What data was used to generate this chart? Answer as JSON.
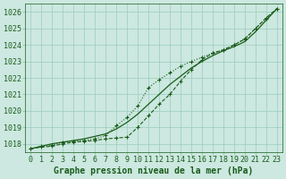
{
  "background_color": "#cce8e0",
  "grid_color": "#99ccbb",
  "line_color": "#1a5c1a",
  "title": "Graphe pression niveau de la mer (hPa)",
  "title_color": "#1a5c1a",
  "xlim": [
    -0.5,
    23.5
  ],
  "ylim": [
    1017.5,
    1026.5
  ],
  "yticks": [
    1018,
    1019,
    1020,
    1021,
    1022,
    1023,
    1024,
    1025,
    1026
  ],
  "xticks": [
    0,
    1,
    2,
    3,
    4,
    5,
    6,
    7,
    8,
    9,
    10,
    11,
    12,
    13,
    14,
    15,
    16,
    17,
    18,
    19,
    20,
    21,
    22,
    23
  ],
  "line_smooth_x": [
    0,
    1,
    2,
    3,
    4,
    5,
    6,
    7,
    8,
    9,
    10,
    11,
    12,
    13,
    14,
    15,
    16,
    17,
    18,
    19,
    20,
    21,
    22,
    23
  ],
  "line_smooth_y": [
    1017.7,
    1017.85,
    1018.0,
    1018.1,
    1018.2,
    1018.3,
    1018.45,
    1018.6,
    1018.9,
    1019.3,
    1019.8,
    1020.4,
    1021.0,
    1021.6,
    1022.1,
    1022.6,
    1023.0,
    1023.35,
    1023.65,
    1023.9,
    1024.2,
    1024.8,
    1025.5,
    1026.2
  ],
  "line_upper_x": [
    0,
    1,
    2,
    3,
    4,
    5,
    6,
    7,
    8,
    9,
    10,
    11,
    12,
    13,
    14,
    15,
    16,
    17,
    18,
    19,
    20,
    21,
    22,
    23
  ],
  "line_upper_y": [
    1017.7,
    1017.85,
    1017.9,
    1018.1,
    1018.15,
    1018.2,
    1018.3,
    1018.5,
    1019.1,
    1019.6,
    1020.3,
    1021.4,
    1021.9,
    1022.3,
    1022.7,
    1023.0,
    1023.25,
    1023.5,
    1023.7,
    1024.0,
    1024.4,
    1025.0,
    1025.6,
    1026.2
  ],
  "line_lower_x": [
    0,
    1,
    2,
    3,
    4,
    5,
    6,
    7,
    8,
    9,
    10,
    11,
    12,
    13,
    14,
    15,
    16,
    17,
    18,
    19,
    20,
    21,
    22,
    23
  ],
  "line_lower_y": [
    1017.7,
    1017.8,
    1017.85,
    1018.0,
    1018.1,
    1018.15,
    1018.2,
    1018.3,
    1018.35,
    1018.4,
    1019.0,
    1019.7,
    1020.4,
    1021.0,
    1021.8,
    1022.5,
    1023.1,
    1023.5,
    1023.7,
    1024.0,
    1024.35,
    1025.0,
    1025.65,
    1026.2
  ],
  "tick_label_fontsize": 6,
  "title_fontsize": 7
}
